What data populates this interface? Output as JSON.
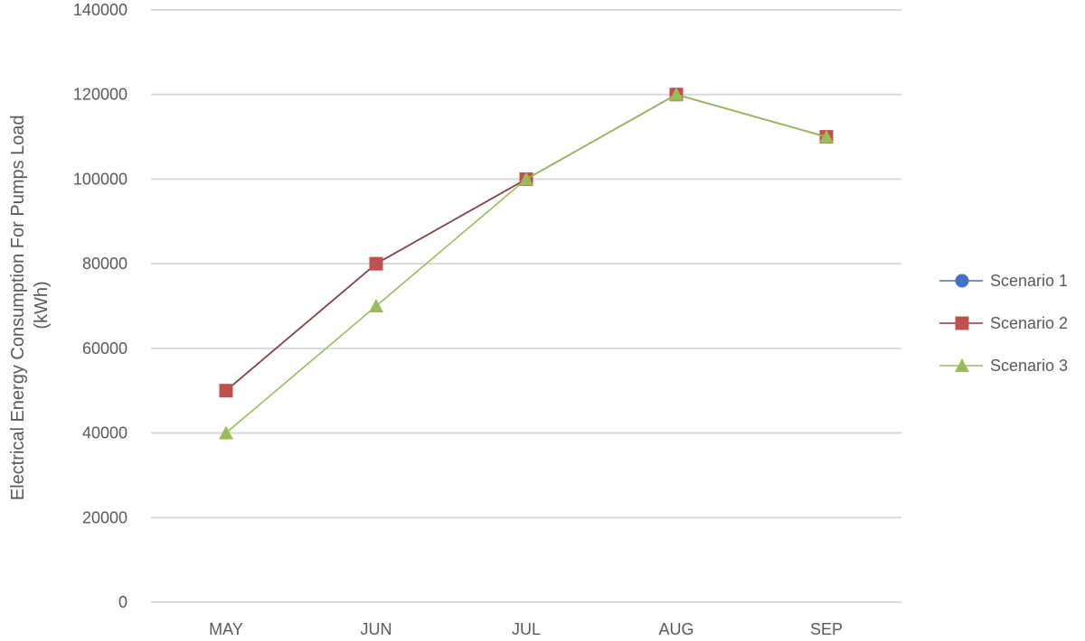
{
  "chart_data": {
    "type": "line",
    "categories": [
      "MAY",
      "JUN",
      "JUL",
      "AUG",
      "SEP"
    ],
    "ylabel_lines": [
      "Electrical Energy Consumption For Pumps Load",
      "(kWh)"
    ],
    "ylim": [
      0,
      140000
    ],
    "yticks": [
      0,
      20000,
      40000,
      60000,
      80000,
      100000,
      120000,
      140000
    ],
    "grid": true,
    "legend_position": "right",
    "series": [
      {
        "name": "Scenario 1",
        "marker": "circle",
        "color": "#4472c4",
        "line_color": "#4472c4",
        "values": [
          50000,
          80000,
          100000,
          120000,
          110000
        ]
      },
      {
        "name": "Scenario 2",
        "marker": "square",
        "color": "#c0504d",
        "line_color": "#8b3a3a",
        "values": [
          50000,
          80000,
          100000,
          120000,
          110000
        ]
      },
      {
        "name": "Scenario 3",
        "marker": "triangle",
        "color": "#9bbb59",
        "line_color": "#9bbb59",
        "values": [
          40000,
          70000,
          100000,
          120000,
          110000
        ]
      }
    ]
  }
}
